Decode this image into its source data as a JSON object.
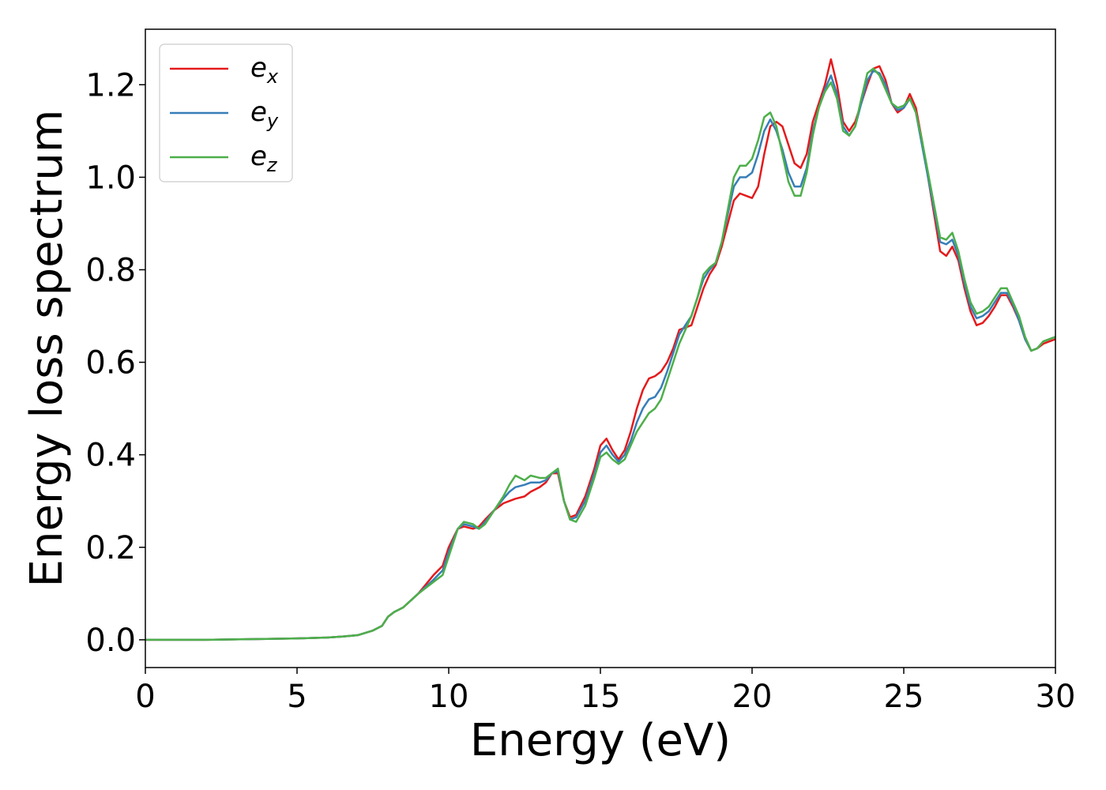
{
  "chart_data": {
    "type": "line",
    "title": "",
    "xlabel": "Energy (eV)",
    "ylabel": "Energy loss spectrum",
    "xlim": [
      0,
      30
    ],
    "ylim": [
      -0.06,
      1.32
    ],
    "xticks": [
      "0",
      "5",
      "10",
      "15",
      "20",
      "25",
      "30"
    ],
    "yticks": [
      "0.0",
      "0.2",
      "0.4",
      "0.6",
      "0.8",
      "1.0",
      "1.2"
    ],
    "grid": false,
    "legend_position": "top-left",
    "series": [
      {
        "name": "e_x",
        "legend_base": "e",
        "legend_sub": "x",
        "color": "#e41a1c",
        "x": [
          0,
          2,
          4,
          5,
          6,
          6.5,
          7,
          7.5,
          7.8,
          8.0,
          8.2,
          8.5,
          9.0,
          9.5,
          9.8,
          10.0,
          10.3,
          10.5,
          10.8,
          11.0,
          11.2,
          11.5,
          11.8,
          12.0,
          12.2,
          12.5,
          12.7,
          13.0,
          13.2,
          13.4,
          13.6,
          13.8,
          14.0,
          14.2,
          14.5,
          14.8,
          15.0,
          15.2,
          15.4,
          15.6,
          15.8,
          16.0,
          16.2,
          16.4,
          16.6,
          16.8,
          17.0,
          17.2,
          17.4,
          17.6,
          17.8,
          18.0,
          18.2,
          18.4,
          18.6,
          18.8,
          19.0,
          19.2,
          19.4,
          19.6,
          19.8,
          20.0,
          20.2,
          20.4,
          20.6,
          20.8,
          21.0,
          21.2,
          21.4,
          21.6,
          21.8,
          22.0,
          22.2,
          22.4,
          22.6,
          22.8,
          23.0,
          23.2,
          23.4,
          23.6,
          23.8,
          24.0,
          24.2,
          24.4,
          24.6,
          24.8,
          25.0,
          25.2,
          25.4,
          25.6,
          25.8,
          26.0,
          26.2,
          26.4,
          26.6,
          26.8,
          27.0,
          27.2,
          27.4,
          27.6,
          27.8,
          28.0,
          28.2,
          28.4,
          28.6,
          28.8,
          29.0,
          29.2,
          29.4,
          29.6,
          29.8,
          30.0
        ],
        "y": [
          0.0,
          0.0,
          0.002,
          0.003,
          0.005,
          0.007,
          0.01,
          0.02,
          0.03,
          0.05,
          0.06,
          0.07,
          0.1,
          0.14,
          0.16,
          0.2,
          0.24,
          0.245,
          0.24,
          0.245,
          0.26,
          0.28,
          0.295,
          0.3,
          0.305,
          0.31,
          0.32,
          0.33,
          0.34,
          0.36,
          0.36,
          0.3,
          0.265,
          0.27,
          0.31,
          0.37,
          0.42,
          0.435,
          0.41,
          0.39,
          0.41,
          0.45,
          0.5,
          0.54,
          0.565,
          0.57,
          0.58,
          0.6,
          0.63,
          0.67,
          0.675,
          0.68,
          0.72,
          0.76,
          0.79,
          0.81,
          0.85,
          0.9,
          0.95,
          0.965,
          0.96,
          0.955,
          0.98,
          1.05,
          1.11,
          1.12,
          1.11,
          1.07,
          1.03,
          1.02,
          1.05,
          1.12,
          1.16,
          1.2,
          1.255,
          1.2,
          1.12,
          1.1,
          1.12,
          1.16,
          1.2,
          1.235,
          1.24,
          1.21,
          1.16,
          1.14,
          1.15,
          1.18,
          1.15,
          1.08,
          1.0,
          0.92,
          0.84,
          0.83,
          0.85,
          0.82,
          0.76,
          0.71,
          0.68,
          0.685,
          0.7,
          0.72,
          0.745,
          0.745,
          0.72,
          0.69,
          0.65,
          0.625,
          0.63,
          0.64,
          0.645,
          0.65
        ]
      },
      {
        "name": "e_y",
        "legend_base": "e",
        "legend_sub": "y",
        "color": "#377eb8",
        "x": [
          0,
          2,
          4,
          5,
          6,
          6.5,
          7,
          7.5,
          7.8,
          8.0,
          8.2,
          8.5,
          9.0,
          9.5,
          9.8,
          10.0,
          10.3,
          10.5,
          10.8,
          11.0,
          11.2,
          11.5,
          11.8,
          12.0,
          12.2,
          12.5,
          12.7,
          13.0,
          13.2,
          13.4,
          13.6,
          13.8,
          14.0,
          14.2,
          14.5,
          14.8,
          15.0,
          15.2,
          15.4,
          15.6,
          15.8,
          16.0,
          16.2,
          16.4,
          16.6,
          16.8,
          17.0,
          17.2,
          17.4,
          17.6,
          17.8,
          18.0,
          18.2,
          18.4,
          18.6,
          18.8,
          19.0,
          19.2,
          19.4,
          19.6,
          19.8,
          20.0,
          20.2,
          20.4,
          20.6,
          20.8,
          21.0,
          21.2,
          21.4,
          21.6,
          21.8,
          22.0,
          22.2,
          22.4,
          22.6,
          22.8,
          23.0,
          23.2,
          23.4,
          23.6,
          23.8,
          24.0,
          24.2,
          24.4,
          24.6,
          24.8,
          25.0,
          25.2,
          25.4,
          25.6,
          25.8,
          26.0,
          26.2,
          26.4,
          26.6,
          26.8,
          27.0,
          27.2,
          27.4,
          27.6,
          27.8,
          28.0,
          28.2,
          28.4,
          28.6,
          28.8,
          29.0,
          29.2,
          29.4,
          29.6,
          29.8,
          30.0
        ],
        "y": [
          0.0,
          0.0,
          0.002,
          0.003,
          0.005,
          0.007,
          0.01,
          0.02,
          0.03,
          0.05,
          0.06,
          0.07,
          0.1,
          0.13,
          0.15,
          0.19,
          0.24,
          0.25,
          0.245,
          0.24,
          0.255,
          0.28,
          0.305,
          0.32,
          0.33,
          0.335,
          0.34,
          0.34,
          0.345,
          0.36,
          0.365,
          0.3,
          0.26,
          0.265,
          0.3,
          0.36,
          0.405,
          0.42,
          0.4,
          0.385,
          0.4,
          0.43,
          0.47,
          0.5,
          0.52,
          0.525,
          0.545,
          0.58,
          0.62,
          0.66,
          0.68,
          0.7,
          0.74,
          0.78,
          0.8,
          0.815,
          0.86,
          0.92,
          0.98,
          1.0,
          1.0,
          1.01,
          1.05,
          1.1,
          1.125,
          1.1,
          1.06,
          1.01,
          0.98,
          0.98,
          1.02,
          1.1,
          1.15,
          1.19,
          1.22,
          1.18,
          1.11,
          1.09,
          1.11,
          1.16,
          1.21,
          1.23,
          1.225,
          1.2,
          1.16,
          1.145,
          1.15,
          1.17,
          1.14,
          1.07,
          1.0,
          0.93,
          0.86,
          0.855,
          0.865,
          0.83,
          0.77,
          0.72,
          0.695,
          0.7,
          0.71,
          0.73,
          0.75,
          0.75,
          0.725,
          0.69,
          0.65,
          0.625,
          0.63,
          0.645,
          0.65,
          0.655
        ]
      },
      {
        "name": "e_z",
        "legend_base": "e",
        "legend_sub": "z",
        "color": "#4daf4a",
        "x": [
          0,
          2,
          4,
          5,
          6,
          6.5,
          7,
          7.5,
          7.8,
          8.0,
          8.2,
          8.5,
          9.0,
          9.5,
          9.8,
          10.0,
          10.3,
          10.5,
          10.8,
          11.0,
          11.2,
          11.5,
          11.8,
          12.0,
          12.2,
          12.5,
          12.7,
          13.0,
          13.2,
          13.4,
          13.6,
          13.8,
          14.0,
          14.2,
          14.5,
          14.8,
          15.0,
          15.2,
          15.4,
          15.6,
          15.8,
          16.0,
          16.2,
          16.4,
          16.6,
          16.8,
          17.0,
          17.2,
          17.4,
          17.6,
          17.8,
          18.0,
          18.2,
          18.4,
          18.6,
          18.8,
          19.0,
          19.2,
          19.4,
          19.6,
          19.8,
          20.0,
          20.2,
          20.4,
          20.6,
          20.8,
          21.0,
          21.2,
          21.4,
          21.6,
          21.8,
          22.0,
          22.2,
          22.4,
          22.6,
          22.8,
          23.0,
          23.2,
          23.4,
          23.6,
          23.8,
          24.0,
          24.2,
          24.4,
          24.6,
          24.8,
          25.0,
          25.2,
          25.4,
          25.6,
          25.8,
          26.0,
          26.2,
          26.4,
          26.6,
          26.8,
          27.0,
          27.2,
          27.4,
          27.6,
          27.8,
          28.0,
          28.2,
          28.4,
          28.6,
          28.8,
          29.0,
          29.2,
          29.4,
          29.6,
          29.8,
          30.0
        ],
        "y": [
          0.0,
          0.0,
          0.002,
          0.003,
          0.005,
          0.007,
          0.01,
          0.02,
          0.03,
          0.05,
          0.06,
          0.07,
          0.1,
          0.125,
          0.14,
          0.18,
          0.24,
          0.255,
          0.25,
          0.24,
          0.25,
          0.28,
          0.31,
          0.335,
          0.355,
          0.345,
          0.355,
          0.35,
          0.35,
          0.36,
          0.37,
          0.3,
          0.26,
          0.255,
          0.29,
          0.35,
          0.395,
          0.405,
          0.39,
          0.38,
          0.39,
          0.42,
          0.45,
          0.47,
          0.49,
          0.5,
          0.52,
          0.56,
          0.6,
          0.64,
          0.67,
          0.7,
          0.74,
          0.79,
          0.805,
          0.815,
          0.86,
          0.93,
          1.0,
          1.025,
          1.025,
          1.04,
          1.08,
          1.13,
          1.14,
          1.11,
          1.05,
          0.99,
          0.96,
          0.96,
          1.01,
          1.09,
          1.15,
          1.185,
          1.205,
          1.17,
          1.1,
          1.09,
          1.11,
          1.17,
          1.225,
          1.235,
          1.22,
          1.19,
          1.16,
          1.15,
          1.155,
          1.17,
          1.14,
          1.08,
          1.01,
          0.94,
          0.87,
          0.865,
          0.88,
          0.84,
          0.78,
          0.73,
          0.705,
          0.71,
          0.72,
          0.74,
          0.76,
          0.76,
          0.73,
          0.7,
          0.655,
          0.625,
          0.63,
          0.645,
          0.65,
          0.655
        ]
      }
    ]
  }
}
